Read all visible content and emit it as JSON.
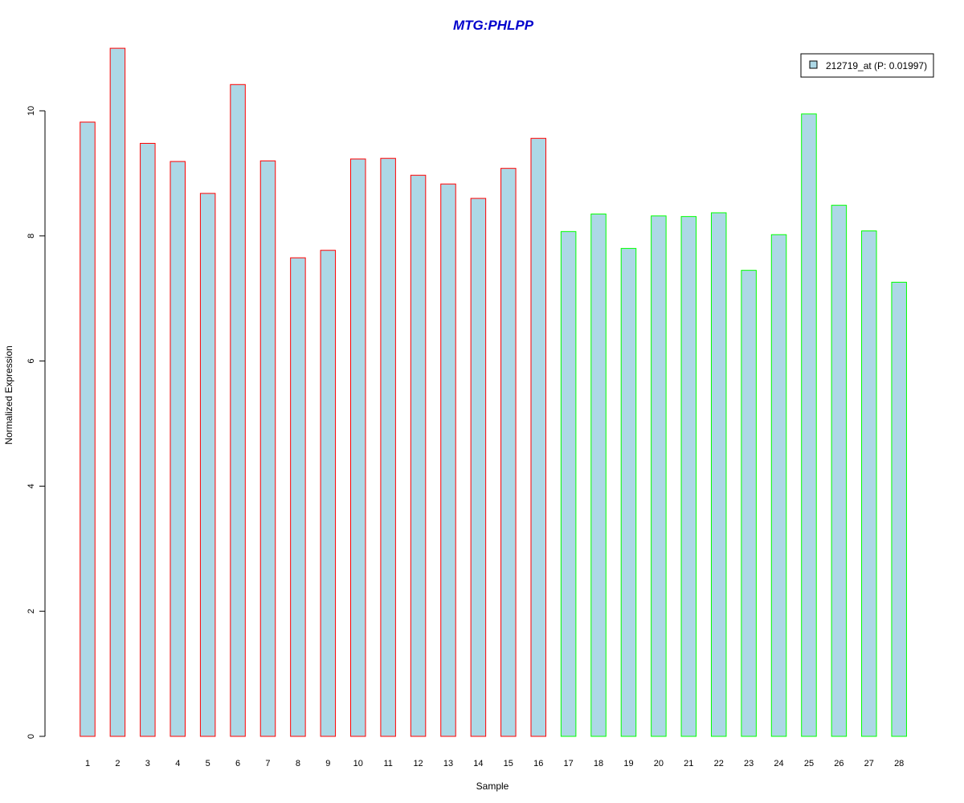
{
  "chart_data": {
    "type": "bar",
    "title": "MTG:PHLPP",
    "xlabel": "Sample",
    "ylabel": "Normalized Expression",
    "ylim": [
      0,
      11
    ],
    "yticks": [
      0,
      2,
      4,
      6,
      8,
      10
    ],
    "categories": [
      "1",
      "2",
      "3",
      "4",
      "5",
      "6",
      "7",
      "8",
      "9",
      "10",
      "11",
      "12",
      "13",
      "14",
      "15",
      "16",
      "17",
      "18",
      "19",
      "20",
      "21",
      "22",
      "23",
      "24",
      "25",
      "26",
      "27",
      "28"
    ],
    "values": [
      9.82,
      11.0,
      9.48,
      9.19,
      8.68,
      10.42,
      9.2,
      7.65,
      7.77,
      9.23,
      9.24,
      8.97,
      8.83,
      8.6,
      9.08,
      9.56,
      8.07,
      8.35,
      7.8,
      8.32,
      8.31,
      8.37,
      7.45,
      8.02,
      9.95,
      8.49,
      8.08,
      7.26
    ],
    "groups": [
      1,
      1,
      1,
      1,
      1,
      1,
      1,
      1,
      1,
      1,
      1,
      1,
      1,
      1,
      1,
      1,
      2,
      2,
      2,
      2,
      2,
      2,
      2,
      2,
      2,
      2,
      2,
      2
    ],
    "series": [
      {
        "name": "212719_at (P: 0.01997)",
        "values": [
          9.82,
          11.0,
          9.48,
          9.19,
          8.68,
          10.42,
          9.2,
          7.65,
          7.77,
          9.23,
          9.24,
          8.97,
          8.83,
          8.6,
          9.08,
          9.56,
          8.07,
          8.35,
          7.8,
          8.32,
          8.31,
          8.37,
          7.45,
          8.02,
          9.95,
          8.49,
          8.08,
          7.26
        ]
      }
    ],
    "legend_position": "top-right",
    "grid": false,
    "colors": {
      "fill": "#add8e6",
      "group1_border": "#ff0000",
      "group2_border": "#00ff00",
      "title": "#0000cc"
    }
  }
}
